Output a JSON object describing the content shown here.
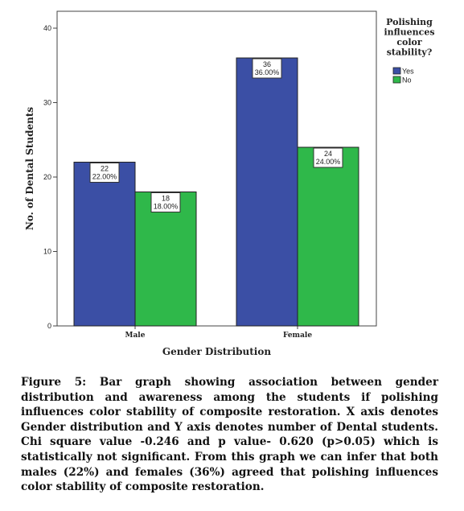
{
  "chart_data": {
    "type": "bar",
    "categories": [
      "Male",
      "Female"
    ],
    "series": [
      {
        "name": "Yes",
        "values": [
          22,
          36
        ],
        "labels": [
          "22\n22.00%",
          "36\n36.00%"
        ],
        "color": "#3b4fa5"
      },
      {
        "name": "No",
        "values": [
          18,
          24
        ],
        "labels": [
          "18\n18.00%",
          "24\n24.00%"
        ],
        "color": "#2fb84a"
      }
    ],
    "title": "",
    "xlabel": "Gender Distribution",
    "ylabel": "No. of Dental Students",
    "ylim": [
      0,
      40
    ],
    "yticks": [
      0,
      10,
      20,
      30,
      40
    ],
    "grid": false,
    "legend": {
      "title": "Polishing influences color stability?",
      "title_lines": [
        "Polishing",
        "influences",
        "color",
        "stability?"
      ],
      "placement": "right"
    }
  },
  "caption": "Figure 5: Bar graph showing association between gender distribution and awareness among the students if polishing influences color stability of composite restoration. X axis denotes Gender distribution and Y axis denotes number of Dental students. Chi square value -0.246 and p value- 0.620 (p>0.05) which is statistically not significant. From this graph we can infer that both males (22%) and females (36%) agreed that polishing influences color stability of composite restoration."
}
